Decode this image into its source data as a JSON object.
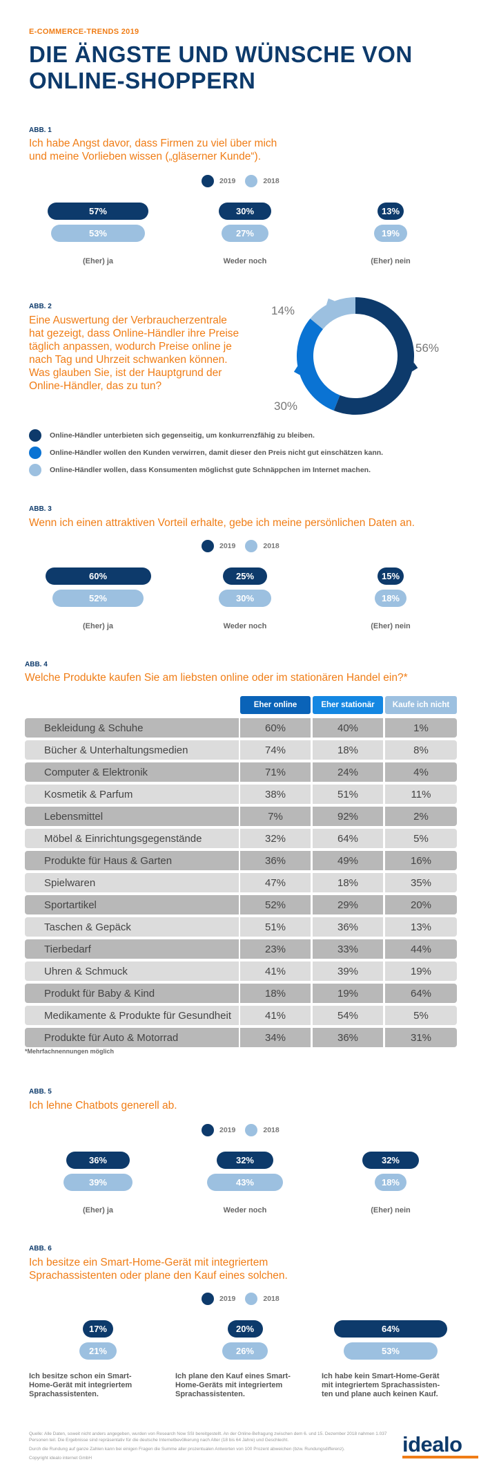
{
  "header": {
    "kicker": "E-COMMERCE-TRENDS 2019",
    "title": "DIE ÄNGSTE UND WÜNSCHE VON ONLINE-SHOPPERN"
  },
  "legend": {
    "y2019": "2019",
    "y2018": "2018"
  },
  "colors": {
    "dark": "#0d3a6b",
    "light": "#9cc0e0",
    "mid": "#0a73d3",
    "accent": "#f07d16"
  },
  "abb1": {
    "label": "ABB. 1",
    "question": "Ich habe Angst davor, dass Firmen zu viel über mich und meine Vorlieben wissen („gläserner Kunde“).",
    "groups": [
      {
        "label": "(Eher) ja",
        "v2019": "57%",
        "v2018": "53%"
      },
      {
        "label": "Weder noch",
        "v2019": "30%",
        "v2018": "27%"
      },
      {
        "label": "(Eher) nein",
        "v2019": "13%",
        "v2018": "19%"
      }
    ]
  },
  "abb2": {
    "label": "ABB. 2",
    "question": "Eine Auswertung der Verbraucherzentrale hat gezeigt, dass Online-Händler ihre Preise täglich anpassen, wodurch Preise online je nach Tag und Uhrzeit schwanken können. Was glauben Sie, ist der Hauptgrund der Online-Händler, das zu tun?",
    "legend": [
      "Online-Händler unterbieten sich gegenseitig, um konkurrenzfähig zu bleiben.",
      "Online-Händler wollen den Kunden verwirren, damit dieser den Preis nicht gut einschätzen kann.",
      "Online-Händler wollen, dass Konsumenten möglichst gute Schnäppchen im Internet machen."
    ],
    "pct_labels": [
      "56%",
      "30%",
      "14%"
    ]
  },
  "abb3": {
    "label": "ABB. 3",
    "question": "Wenn ich einen attraktiven Vorteil erhalte, gebe ich meine persönlichen Daten an.",
    "groups": [
      {
        "label": "(Eher) ja",
        "v2019": "60%",
        "v2018": "52%"
      },
      {
        "label": "Weder noch",
        "v2019": "25%",
        "v2018": "30%"
      },
      {
        "label": "(Eher) nein",
        "v2019": "15%",
        "v2018": "18%"
      }
    ]
  },
  "abb4": {
    "label": "ABB. 4",
    "question": "Welche Produkte kaufen Sie am liebsten online oder im stationären Handel ein?*",
    "columns": [
      "Eher online",
      "Eher stationär",
      "Kaufe ich nicht"
    ],
    "note": "*Mehrfachnennungen möglich",
    "rows": [
      {
        "label": "Bekleidung & Schuhe",
        "online": "60%",
        "stationaer": "40%",
        "nicht": "1%"
      },
      {
        "label": "Bücher & Unterhaltungsmedien",
        "online": "74%",
        "stationaer": "18%",
        "nicht": "8%"
      },
      {
        "label": "Computer & Elektronik",
        "online": "71%",
        "stationaer": "24%",
        "nicht": "4%"
      },
      {
        "label": "Kosmetik & Parfum",
        "online": "38%",
        "stationaer": "51%",
        "nicht": "11%"
      },
      {
        "label": "Lebensmittel",
        "online": "7%",
        "stationaer": "92%",
        "nicht": "2%"
      },
      {
        "label": "Möbel & Einrichtungsgegenstände",
        "online": "32%",
        "stationaer": "64%",
        "nicht": "5%"
      },
      {
        "label": "Produkte für Haus & Garten",
        "online": "36%",
        "stationaer": "49%",
        "nicht": "16%"
      },
      {
        "label": "Spielwaren",
        "online": "47%",
        "stationaer": "18%",
        "nicht": "35%"
      },
      {
        "label": "Sportartikel",
        "online": "52%",
        "stationaer": "29%",
        "nicht": "20%"
      },
      {
        "label": "Taschen & Gepäck",
        "online": "51%",
        "stationaer": "36%",
        "nicht": "13%"
      },
      {
        "label": "Tierbedarf",
        "online": "23%",
        "stationaer": "33%",
        "nicht": "44%"
      },
      {
        "label": "Uhren & Schmuck",
        "online": "41%",
        "stationaer": "39%",
        "nicht": "19%"
      },
      {
        "label": "Produkt für Baby & Kind",
        "online": "18%",
        "stationaer": "19%",
        "nicht": "64%"
      },
      {
        "label": "Medikamente & Produkte für Gesundheit",
        "online": "41%",
        "stationaer": "54%",
        "nicht": "5%"
      },
      {
        "label": "Produkte für Auto & Motorrad",
        "online": "34%",
        "stationaer": "36%",
        "nicht": "31%"
      }
    ]
  },
  "abb5": {
    "label": "ABB. 5",
    "question": "Ich lehne Chatbots generell ab.",
    "groups": [
      {
        "label": "(Eher) ja",
        "v2019": "36%",
        "v2018": "39%"
      },
      {
        "label": "Weder noch",
        "v2019": "32%",
        "v2018": "43%"
      },
      {
        "label": "(Eher) nein",
        "v2019": "32%",
        "v2018": "18%"
      }
    ]
  },
  "abb6": {
    "label": "ABB. 6",
    "question": "Ich besitze ein Smart-Home-Gerät mit integriertem Sprachassistenten oder plane den Kauf eines solchen.",
    "groups": [
      {
        "label": "Ich besitze schon ein Smart-Home-Gerät mit integriertem Sprachassistenten.",
        "v2019": "17%",
        "v2018": "21%"
      },
      {
        "label": "Ich plane den Kauf eines Smart-Home-Geräts mit integriertem Sprachassistenten.",
        "v2019": "20%",
        "v2018": "26%"
      },
      {
        "label": "Ich habe kein Smart-Home-Gerät mit integriertem Sprachassisten-ten und plane auch keinen Kauf.",
        "v2019": "64%",
        "v2018": "53%"
      }
    ]
  },
  "footer": {
    "line1": "Quelle: Alle Daten, soweit nicht anders angegeben, wurden von Research Now SSI bereitgestellt. An der Online-Befragung zwischen dem 6. und 15. Dezember 2018 nahmen 1.037 Personen teil. Die Ergebnisse sind repräsentativ für die deutsche Internetbevölkerung nach Alter (18 bis 64 Jahre) und Geschlecht.",
    "line2": "Durch die Rundung auf ganze Zahlen kann bei einigen Fragen die Summe aller prozentualen Antworten von 100 Prozent abweichen (bzw. Rundungsdifferenz).",
    "line3": "Copyright idealo internet GmbH",
    "logo": "idealo"
  },
  "chart_data": [
    {
      "type": "bar",
      "title": "Ich habe Angst davor, dass Firmen zu viel über mich und meine Vorlieben wissen („gläserner Kunde“).",
      "categories": [
        "(Eher) ja",
        "Weder noch",
        "(Eher) nein"
      ],
      "series": [
        {
          "name": "2019",
          "values": [
            57,
            30,
            13
          ]
        },
        {
          "name": "2018",
          "values": [
            53,
            27,
            19
          ]
        }
      ]
    },
    {
      "type": "pie",
      "categories": [
        "Online-Händler unterbieten sich gegenseitig, um konkurrenzfähig zu bleiben.",
        "Online-Händler wollen den Kunden verwirren, damit dieser den Preis nicht gut einschätzen kann.",
        "Online-Händler wollen, dass Konsumenten möglichst gute Schnäppchen im Internet machen."
      ],
      "values": [
        56,
        30,
        14
      ]
    },
    {
      "type": "bar",
      "title": "Wenn ich einen attraktiven Vorteil erhalte, gebe ich meine persönlichen Daten an.",
      "categories": [
        "(Eher) ja",
        "Weder noch",
        "(Eher) nein"
      ],
      "series": [
        {
          "name": "2019",
          "values": [
            60,
            25,
            15
          ]
        },
        {
          "name": "2018",
          "values": [
            52,
            30,
            18
          ]
        }
      ]
    },
    {
      "type": "table",
      "title": "Welche Produkte kaufen Sie am liebsten online oder im stationären Handel ein?*",
      "columns": [
        "Eher online",
        "Eher stationär",
        "Kaufe ich nicht"
      ]
    },
    {
      "type": "bar",
      "title": "Ich lehne Chatbots generell ab.",
      "categories": [
        "(Eher) ja",
        "Weder noch",
        "(Eher) nein"
      ],
      "series": [
        {
          "name": "2019",
          "values": [
            36,
            32,
            32
          ]
        },
        {
          "name": "2018",
          "values": [
            39,
            43,
            18
          ]
        }
      ]
    },
    {
      "type": "bar",
      "title": "Ich besitze ein Smart-Home-Gerät mit integriertem Sprachassistenten oder plane den Kauf eines solchen.",
      "categories": [
        "Ich besitze schon ein Smart-Home-Gerät mit integriertem Sprachassistenten.",
        "Ich plane den Kauf eines Smart-Home-Geräts mit integriertem Sprachassistenten.",
        "Ich habe kein Smart-Home-Gerät mit integriertem Sprachassisten-ten und plane auch keinen Kauf."
      ],
      "series": [
        {
          "name": "2019",
          "values": [
            17,
            20,
            64
          ]
        },
        {
          "name": "2018",
          "values": [
            21,
            26,
            53
          ]
        }
      ]
    }
  ]
}
